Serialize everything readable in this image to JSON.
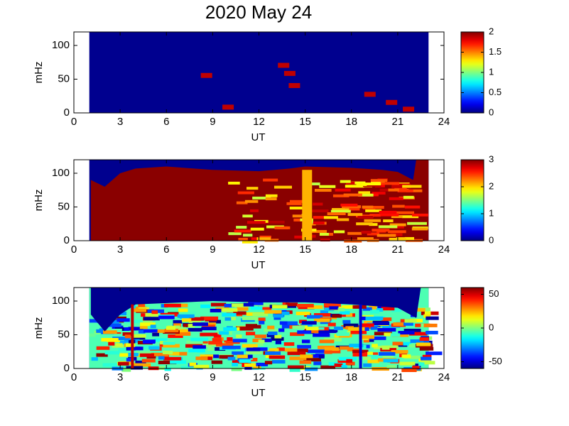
{
  "chart_data": [
    {
      "type": "spectrogram",
      "title": "2020 May 24",
      "xlabel": "UT",
      "ylabel": "mHz",
      "xlim": [
        0,
        24
      ],
      "xticks": [
        0,
        3,
        6,
        9,
        12,
        15,
        18,
        21,
        24
      ],
      "ylim": [
        0,
        120
      ],
      "yticks": [
        0,
        50,
        100
      ],
      "clim": [
        0,
        2
      ],
      "cticks": [
        0,
        0.5,
        1,
        1.5,
        2
      ],
      "colormap": "jet"
    },
    {
      "type": "spectrogram",
      "xlabel": "UT",
      "ylabel": "mHz",
      "xlim": [
        0,
        24
      ],
      "xticks": [
        0,
        3,
        6,
        9,
        12,
        15,
        18,
        21,
        24
      ],
      "ylim": [
        0,
        120
      ],
      "yticks": [
        0,
        50,
        100
      ],
      "clim": [
        0,
        3
      ],
      "cticks": [
        0,
        1,
        2,
        3
      ],
      "colormap": "jet"
    },
    {
      "type": "spectrogram",
      "xlabel": "UT",
      "ylabel": "mHz",
      "xlim": [
        0,
        24
      ],
      "xticks": [
        0,
        3,
        6,
        9,
        12,
        15,
        18,
        21,
        24
      ],
      "ylim": [
        0,
        120
      ],
      "yticks": [
        0,
        50,
        100
      ],
      "clim": [
        -60,
        60
      ],
      "cticks": [
        -50,
        0,
        50
      ],
      "colormap": "jet"
    }
  ]
}
